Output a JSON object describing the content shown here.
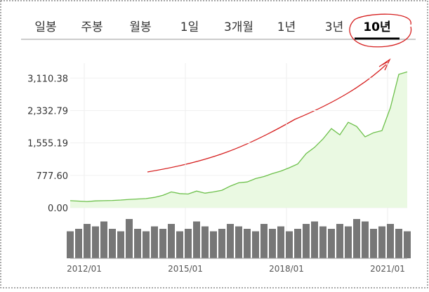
{
  "tabs": [
    {
      "label": "일봉"
    },
    {
      "label": "주봉"
    },
    {
      "label": "월봉"
    },
    {
      "label": "1일"
    },
    {
      "label": "3개월"
    },
    {
      "label": "1년"
    },
    {
      "label": "3년"
    },
    {
      "label": "10년",
      "selected": true
    }
  ],
  "chart_data": {
    "type": "line",
    "x": [
      "2011/08",
      "2011/11",
      "2012/02",
      "2012/05",
      "2012/08",
      "2012/11",
      "2013/02",
      "2013/05",
      "2013/08",
      "2013/11",
      "2014/02",
      "2014/05",
      "2014/08",
      "2014/11",
      "2015/02",
      "2015/05",
      "2015/08",
      "2015/11",
      "2016/02",
      "2016/05",
      "2016/08",
      "2016/11",
      "2017/02",
      "2017/05",
      "2017/08",
      "2017/11",
      "2018/02",
      "2018/05",
      "2018/08",
      "2018/11",
      "2019/02",
      "2019/05",
      "2019/08",
      "2019/11",
      "2020/02",
      "2020/05",
      "2020/08",
      "2020/11",
      "2021/02",
      "2021/05",
      "2021/08"
    ],
    "series": [
      {
        "color": "#6cc04a",
        "values": [
          170,
          160,
          150,
          165,
          170,
          175,
          185,
          200,
          210,
          220,
          250,
          300,
          380,
          340,
          330,
          400,
          350,
          380,
          420,
          520,
          600,
          620,
          700,
          750,
          820,
          880,
          960,
          1050,
          1300,
          1450,
          1650,
          1900,
          1750,
          2050,
          1950,
          1700,
          1800,
          1850,
          2400,
          3200,
          3260
        ]
      }
    ],
    "volume": {
      "color": "#555555",
      "values": [
        55,
        60,
        70,
        65,
        75,
        60,
        55,
        80,
        60,
        55,
        65,
        60,
        70,
        55,
        60,
        75,
        65,
        55,
        60,
        70,
        65,
        60,
        55,
        70,
        60,
        65,
        55,
        60,
        70,
        75,
        65,
        60,
        70,
        65,
        80,
        75,
        60,
        65,
        70,
        60,
        55
      ]
    },
    "ylim": [
      0,
      3300
    ],
    "yticks": [
      {
        "value": 0,
        "label": "0.00"
      },
      {
        "value": 777.6,
        "label": "777.60"
      },
      {
        "value": 1555.19,
        "label": "1,555.19"
      },
      {
        "value": 2332.79,
        "label": "2,332.79"
      },
      {
        "value": 3110.38,
        "label": "3,110.38"
      }
    ],
    "xlim": [
      "2011/08",
      "2021/08"
    ],
    "xticks": [
      "2012/01",
      "2015/01",
      "2018/01",
      "2021/01"
    ],
    "grid": true
  }
}
